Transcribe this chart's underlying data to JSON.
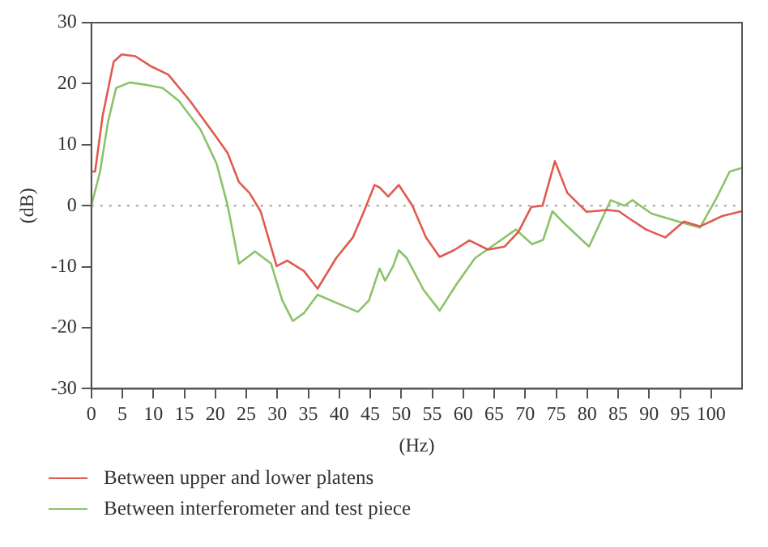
{
  "chart_data": {
    "type": "line",
    "xlabel": "(Hz)",
    "ylabel": "(dB)",
    "xlim": [
      0,
      105
    ],
    "xticks": [
      0,
      5,
      10,
      15,
      20,
      25,
      30,
      35,
      40,
      45,
      50,
      55,
      60,
      65,
      70,
      75,
      80,
      85,
      90,
      95,
      100
    ],
    "ylim": [
      -30,
      30
    ],
    "yticks": [
      -30,
      -20,
      -10,
      0,
      10,
      20,
      30
    ],
    "grid": false,
    "legend": "bottom left",
    "marker": "none",
    "line_style": "solid",
    "ref_lines": [
      {
        "axis": "y",
        "value": 0,
        "color": "#b0b0b0",
        "line_style": "dotted"
      }
    ],
    "series": [
      {
        "name": "Between upper and lower platens",
        "color": "#e05a4f",
        "x": [
          0,
          0.6,
          1.8,
          3.6,
          4.9,
          7.1,
          9.7,
          12.4,
          15.9,
          20.2,
          22,
          23.8,
          25.5,
          27.3,
          29.9,
          31.6,
          34.3,
          36.5,
          39.5,
          42.2,
          44,
          45.7,
          46.5,
          47.9,
          49.6,
          51.8,
          54,
          56.2,
          58.5,
          61,
          64,
          66.7,
          68.9,
          71,
          72.8,
          74.8,
          76.8,
          79.9,
          83.3,
          85.1,
          86.8,
          89.5,
          92.6,
          95.6,
          98.2,
          101.8,
          105
        ],
        "values": [
          5.6,
          5.6,
          14.6,
          23.6,
          24.8,
          24.5,
          22.8,
          21.5,
          17.2,
          11.2,
          8.6,
          3.9,
          2.1,
          -0.9,
          -9.9,
          -9,
          -10.7,
          -13.6,
          -8.6,
          -5.2,
          -0.9,
          3.4,
          3,
          1.5,
          3.4,
          0,
          -5.2,
          -8.4,
          -7.3,
          -5.7,
          -7.2,
          -6.7,
          -4.3,
          -0.2,
          0,
          7.3,
          2.1,
          -1,
          -0.7,
          -0.9,
          -2.1,
          -3.9,
          -5.2,
          -2.6,
          -3.4,
          -1.7,
          -0.9
        ]
      },
      {
        "name": "Between interferometer and test piece",
        "color": "#8cc36a",
        "x": [
          0,
          1.4,
          2.7,
          4,
          6.2,
          8.9,
          11.5,
          14.1,
          17.6,
          20.2,
          22,
          23.8,
          26.4,
          29,
          30.8,
          32.5,
          34.3,
          36.5,
          39.5,
          43,
          44.8,
          46.5,
          47.4,
          48.7,
          49.6,
          50.9,
          53.6,
          56.2,
          58.9,
          61.9,
          65,
          68.5,
          71.1,
          72.9,
          74.4,
          76.4,
          80.3,
          83.8,
          86,
          87.3,
          90.4,
          94.7,
          98.2,
          100.9,
          103,
          105
        ],
        "values": [
          0,
          5.6,
          13.8,
          19.3,
          20.2,
          19.8,
          19.3,
          17.2,
          12.5,
          6.9,
          0,
          -9.5,
          -7.5,
          -9.5,
          -15.5,
          -18.9,
          -17.6,
          -14.6,
          -15.9,
          -17.4,
          -15.5,
          -10.3,
          -12.3,
          -9.9,
          -7.3,
          -8.6,
          -13.8,
          -17.2,
          -12.9,
          -8.6,
          -6.4,
          -3.9,
          -6.3,
          -5.6,
          -0.9,
          -3,
          -6.7,
          0.9,
          0,
          0.9,
          -1.3,
          -2.6,
          -3.6,
          1.3,
          5.6,
          6.2
        ]
      }
    ]
  }
}
